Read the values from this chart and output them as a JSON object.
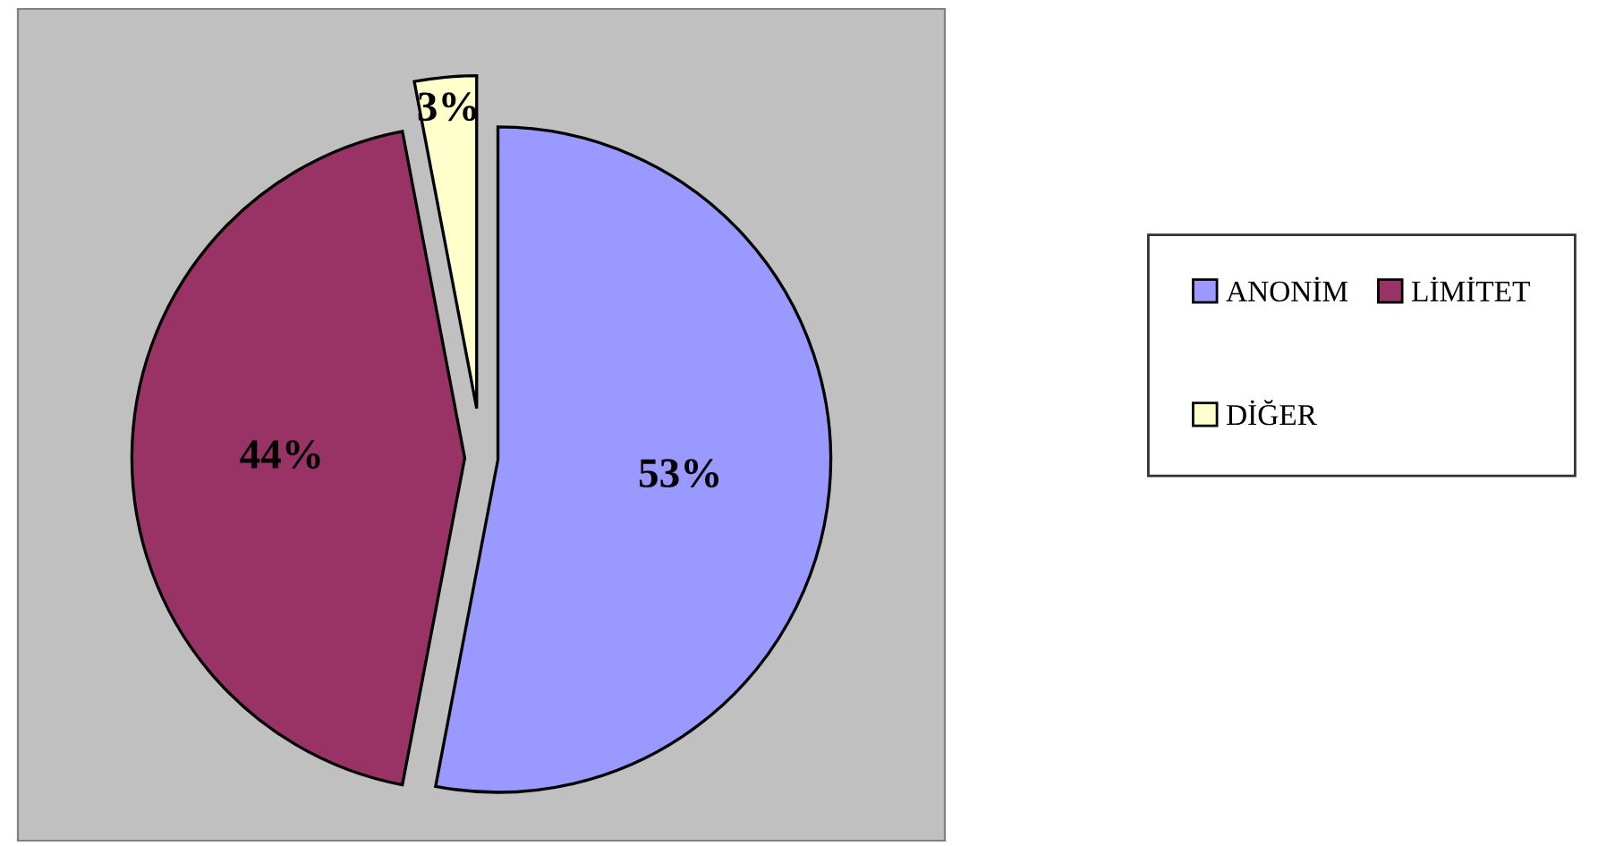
{
  "chart_data": {
    "type": "pie",
    "categories": [
      "ANONİM",
      "LİMİTET",
      "DİĞER"
    ],
    "values": [
      53,
      44,
      3
    ],
    "colors": [
      "#9999ff",
      "#993366",
      "#ffffcc"
    ],
    "value_labels": [
      "53%",
      "44%",
      "3%"
    ],
    "legend": "right"
  }
}
